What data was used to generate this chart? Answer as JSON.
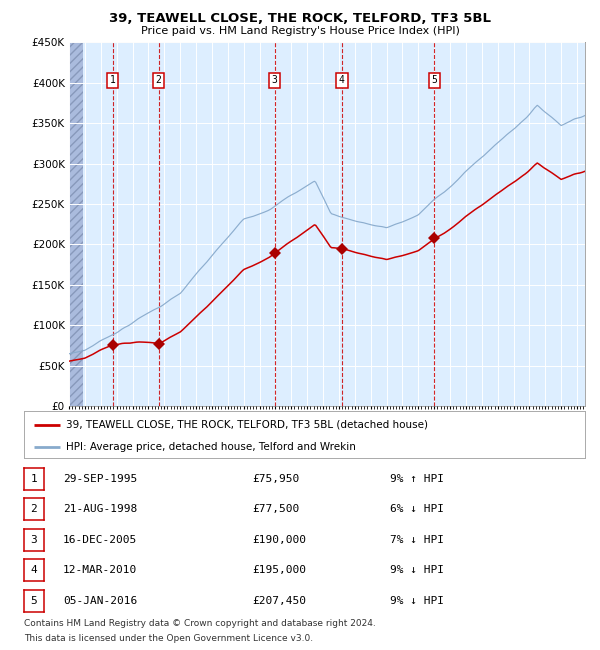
{
  "title": "39, TEAWELL CLOSE, THE ROCK, TELFORD, TF3 5BL",
  "subtitle": "Price paid vs. HM Land Registry's House Price Index (HPI)",
  "legend_label_red": "39, TEAWELL CLOSE, THE ROCK, TELFORD, TF3 5BL (detached house)",
  "legend_label_blue": "HPI: Average price, detached house, Telford and Wrekin",
  "footer_line1": "Contains HM Land Registry data © Crown copyright and database right 2024.",
  "footer_line2": "This data is licensed under the Open Government Licence v3.0.",
  "sales": [
    {
      "num": 1,
      "date": "29-SEP-1995",
      "price": 75950,
      "price_str": "£75,950",
      "pct": "9%",
      "dir": "↑",
      "year_x": 1995.75
    },
    {
      "num": 2,
      "date": "21-AUG-1998",
      "price": 77500,
      "price_str": "£77,500",
      "pct": "6%",
      "dir": "↓",
      "year_x": 1998.64
    },
    {
      "num": 3,
      "date": "16-DEC-2005",
      "price": 190000,
      "price_str": "£190,000",
      "pct": "7%",
      "dir": "↓",
      "year_x": 2005.96
    },
    {
      "num": 4,
      "date": "12-MAR-2010",
      "price": 195000,
      "price_str": "£195,000",
      "pct": "9%",
      "dir": "↓",
      "year_x": 2010.19
    },
    {
      "num": 5,
      "date": "05-JAN-2016",
      "price": 207450,
      "price_str": "£207,450",
      "pct": "9%",
      "dir": "↓",
      "year_x": 2016.01
    }
  ],
  "ylim": [
    0,
    450000
  ],
  "yticks": [
    0,
    50000,
    100000,
    150000,
    200000,
    250000,
    300000,
    350000,
    400000,
    450000
  ],
  "ytick_labels": [
    "£0",
    "£50K",
    "£100K",
    "£150K",
    "£200K",
    "£250K",
    "£300K",
    "£350K",
    "£400K",
    "£450K"
  ],
  "xmin": 1993.0,
  "xmax": 2025.5,
  "hatch_end": 1993.9,
  "plot_bg_color": "#ddeeff",
  "hatch_color": "#aabbdd",
  "red_line_color": "#cc0000",
  "blue_line_color": "#88aacc",
  "sale_marker_color": "#aa0000",
  "vline_color": "#cc0000",
  "grid_color": "#ffffff",
  "border_color": "#cc0000"
}
